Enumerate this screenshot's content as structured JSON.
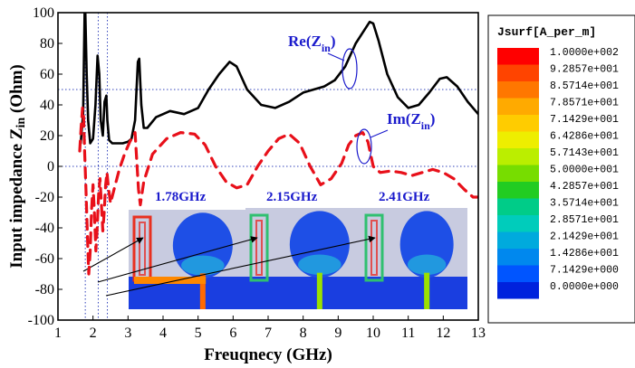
{
  "chart_data": {
    "type": "line",
    "xlabel": "Freuqnecy (GHz)",
    "ylabel_main": "Input impedance Z",
    "ylabel_sub": "in",
    "ylabel_unit": "(Ohm)",
    "xlim": [
      1,
      13
    ],
    "ylim": [
      -100,
      100
    ],
    "x_ticks": [
      1,
      2,
      3,
      4,
      5,
      6,
      7,
      8,
      9,
      10,
      11,
      12,
      13
    ],
    "y_ticks": [
      -100,
      -80,
      -60,
      -40,
      -20,
      0,
      20,
      40,
      60,
      80,
      100
    ],
    "reference_lines": {
      "horizontal": [
        50,
        0
      ],
      "vertical": [
        1.78,
        2.15,
        2.41
      ]
    },
    "series": [
      {
        "name": "Re(Zin)",
        "style": "solid",
        "color": "#000000",
        "x": [
          1.65,
          1.72,
          1.76,
          1.78,
          1.82,
          1.86,
          1.92,
          2.0,
          2.07,
          2.13,
          2.18,
          2.22,
          2.28,
          2.33,
          2.38,
          2.41,
          2.46,
          2.55,
          2.7,
          2.85,
          3.0,
          3.1,
          3.2,
          3.28,
          3.32,
          3.38,
          3.45,
          3.55,
          3.8,
          4.2,
          4.6,
          5.0,
          5.3,
          5.6,
          5.9,
          6.1,
          6.4,
          6.8,
          7.2,
          7.6,
          8.0,
          8.3,
          8.6,
          8.9,
          9.2,
          9.5,
          9.7,
          9.9,
          10.0,
          10.15,
          10.4,
          10.7,
          11.0,
          11.3,
          11.6,
          11.9,
          12.1,
          12.4,
          12.7,
          13.0
        ],
        "y": [
          15,
          35,
          100,
          100,
          60,
          30,
          15,
          18,
          40,
          72,
          60,
          30,
          20,
          42,
          46,
          30,
          17,
          15,
          15,
          15,
          16,
          18,
          30,
          68,
          70,
          40,
          25,
          25,
          32,
          36,
          34,
          38,
          50,
          60,
          68,
          65,
          50,
          40,
          38,
          42,
          48,
          50,
          52,
          56,
          65,
          80,
          87,
          94,
          93,
          82,
          60,
          45,
          38,
          40,
          48,
          57,
          58,
          52,
          42,
          34
        ]
      },
      {
        "name": "Im(Zin)",
        "style": "dashed",
        "color": "#e8101a",
        "x": [
          1.62,
          1.66,
          1.7,
          1.73,
          1.76,
          1.8,
          1.84,
          1.88,
          1.92,
          1.96,
          2.0,
          2.04,
          2.08,
          2.12,
          2.16,
          2.2,
          2.24,
          2.28,
          2.32,
          2.36,
          2.4,
          2.44,
          2.5,
          2.6,
          2.75,
          2.9,
          3.05,
          3.2,
          3.3,
          3.35,
          3.45,
          3.7,
          4.1,
          4.5,
          4.9,
          5.2,
          5.5,
          5.8,
          6.1,
          6.4,
          6.7,
          7.0,
          7.3,
          7.6,
          7.9,
          8.2,
          8.5,
          8.8,
          9.1,
          9.3,
          9.5,
          9.7,
          9.85,
          10.0,
          10.2,
          10.5,
          10.8,
          11.1,
          11.4,
          11.7,
          12.0,
          12.3,
          12.6,
          12.85,
          13.0
        ],
        "y": [
          10,
          25,
          38,
          33,
          10,
          -15,
          -45,
          -70,
          -55,
          -28,
          -12,
          -30,
          -55,
          -40,
          -18,
          -8,
          -24,
          -42,
          -30,
          -12,
          -4,
          -14,
          -24,
          -15,
          -2,
          8,
          16,
          22,
          -15,
          -25,
          -10,
          8,
          18,
          22,
          21,
          14,
          0,
          -10,
          -14,
          -12,
          0,
          10,
          18,
          21,
          15,
          0,
          -12,
          -8,
          2,
          14,
          20,
          22,
          16,
          0,
          -4,
          -3,
          -4,
          -6,
          -4,
          -2,
          -4,
          -8,
          -15,
          -20,
          -20
        ]
      }
    ],
    "annotations": [
      {
        "text": "Re(Z",
        "sub": "in",
        "close": ")"
      },
      {
        "text": "Im(Z",
        "sub": "in",
        "close": ")"
      }
    ],
    "insets": [
      {
        "label": "1.78GHz"
      },
      {
        "label": "2.15GHz"
      },
      {
        "label": "2.41GHz"
      }
    ],
    "colorbar": {
      "title": "Jsurf[A_per_m]",
      "values": [
        "1.0000e+002",
        "9.2857e+001",
        "8.5714e+001",
        "7.8571e+001",
        "7.1429e+001",
        "6.4286e+001",
        "5.7143e+001",
        "5.0000e+001",
        "4.2857e+001",
        "3.5714e+001",
        "2.8571e+001",
        "2.1429e+001",
        "1.4286e+001",
        "7.1429e+000",
        "0.0000e+000"
      ],
      "colors": [
        "#ff0000",
        "#ff4400",
        "#ff7700",
        "#ffaa00",
        "#ffcc00",
        "#eeee00",
        "#bbee00",
        "#77dd00",
        "#22cc22",
        "#00cc88",
        "#00ccbb",
        "#00aadd",
        "#0088ee",
        "#0055ff",
        "#0022dd"
      ]
    }
  }
}
